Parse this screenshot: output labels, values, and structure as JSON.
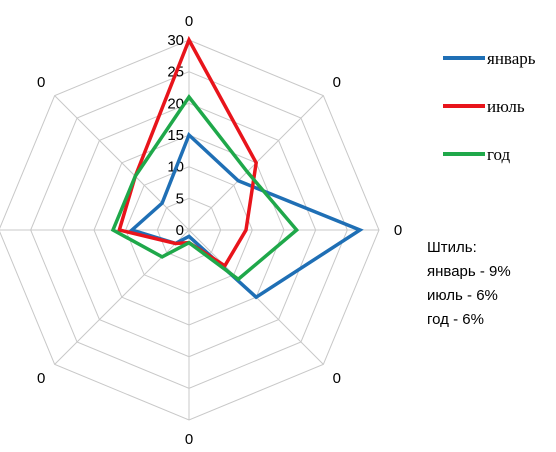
{
  "chart_data": {
    "type": "radar",
    "categories": [
      "0",
      "0",
      "0",
      "0",
      "0",
      "0",
      "0",
      "0"
    ],
    "radial_ticks": [
      "0",
      "5",
      "10",
      "15",
      "20",
      "25",
      "30"
    ],
    "rlim": [
      0,
      30
    ],
    "grid": true,
    "legend_position": "top-right",
    "series": [
      {
        "name": "январь",
        "color": "#1f6fb5",
        "values": [
          15,
          11,
          27,
          15,
          1,
          3,
          9,
          6
        ]
      },
      {
        "name": "июль",
        "color": "#e8141b",
        "values": [
          30,
          15,
          9,
          8,
          2,
          3,
          11,
          12
        ]
      },
      {
        "name": "год",
        "color": "#1fa84a",
        "values": [
          21,
          13,
          17,
          11,
          2,
          6,
          12,
          12
        ]
      }
    ]
  },
  "note": {
    "title": "Штиль:",
    "lines": [
      "январь - 9%",
      "июль - 6%",
      "год - 6%"
    ]
  }
}
